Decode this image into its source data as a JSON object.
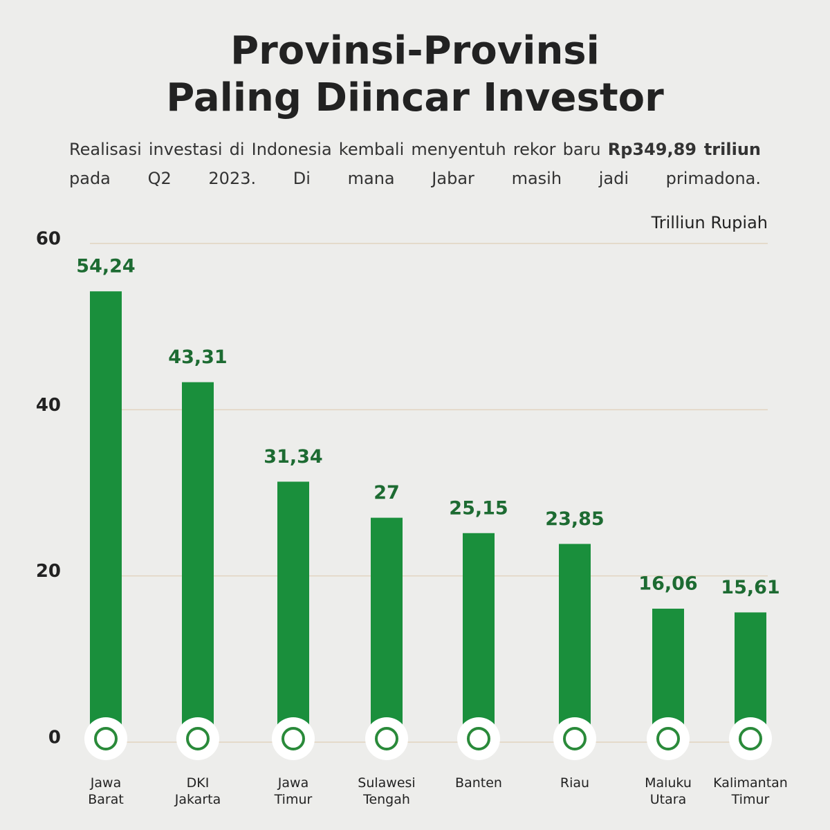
{
  "header": {
    "title": [
      "Provinsi-Provinsi",
      "Paling Diincar Investor"
    ],
    "subtitle": "Realisasi investasi di Indonesia kembali menyentuh rekor baru",
    "subtitle_bold": "Rp349,89 triliun",
    "subtitle_end": "pada Q2 2023. Di mana Jabar masih jadi primadona."
  },
  "chart_data": {
    "type": "bar",
    "y_label": "Trilliun Rupiah",
    "categories": [
      "Jawa Barat",
      "DKI Jakarta",
      "Jawa Timur",
      "Sulawesi Tengah",
      "Banten",
      "Riau",
      "Maluku Utara",
      "Kalimantan Timur"
    ],
    "values": [
      54.24,
      43.31,
      31.34,
      27,
      25.15,
      23.85,
      16.06,
      15.61
    ],
    "value_labels": [
      "54,24",
      "43,31",
      "31,34",
      "27",
      "25,15",
      "23,85",
      "16,06",
      "15,61"
    ],
    "color": "#1a8f3c",
    "ylim": [
      0,
      60
    ],
    "yticks": [
      0,
      20,
      40,
      60
    ],
    "grid": true
  }
}
